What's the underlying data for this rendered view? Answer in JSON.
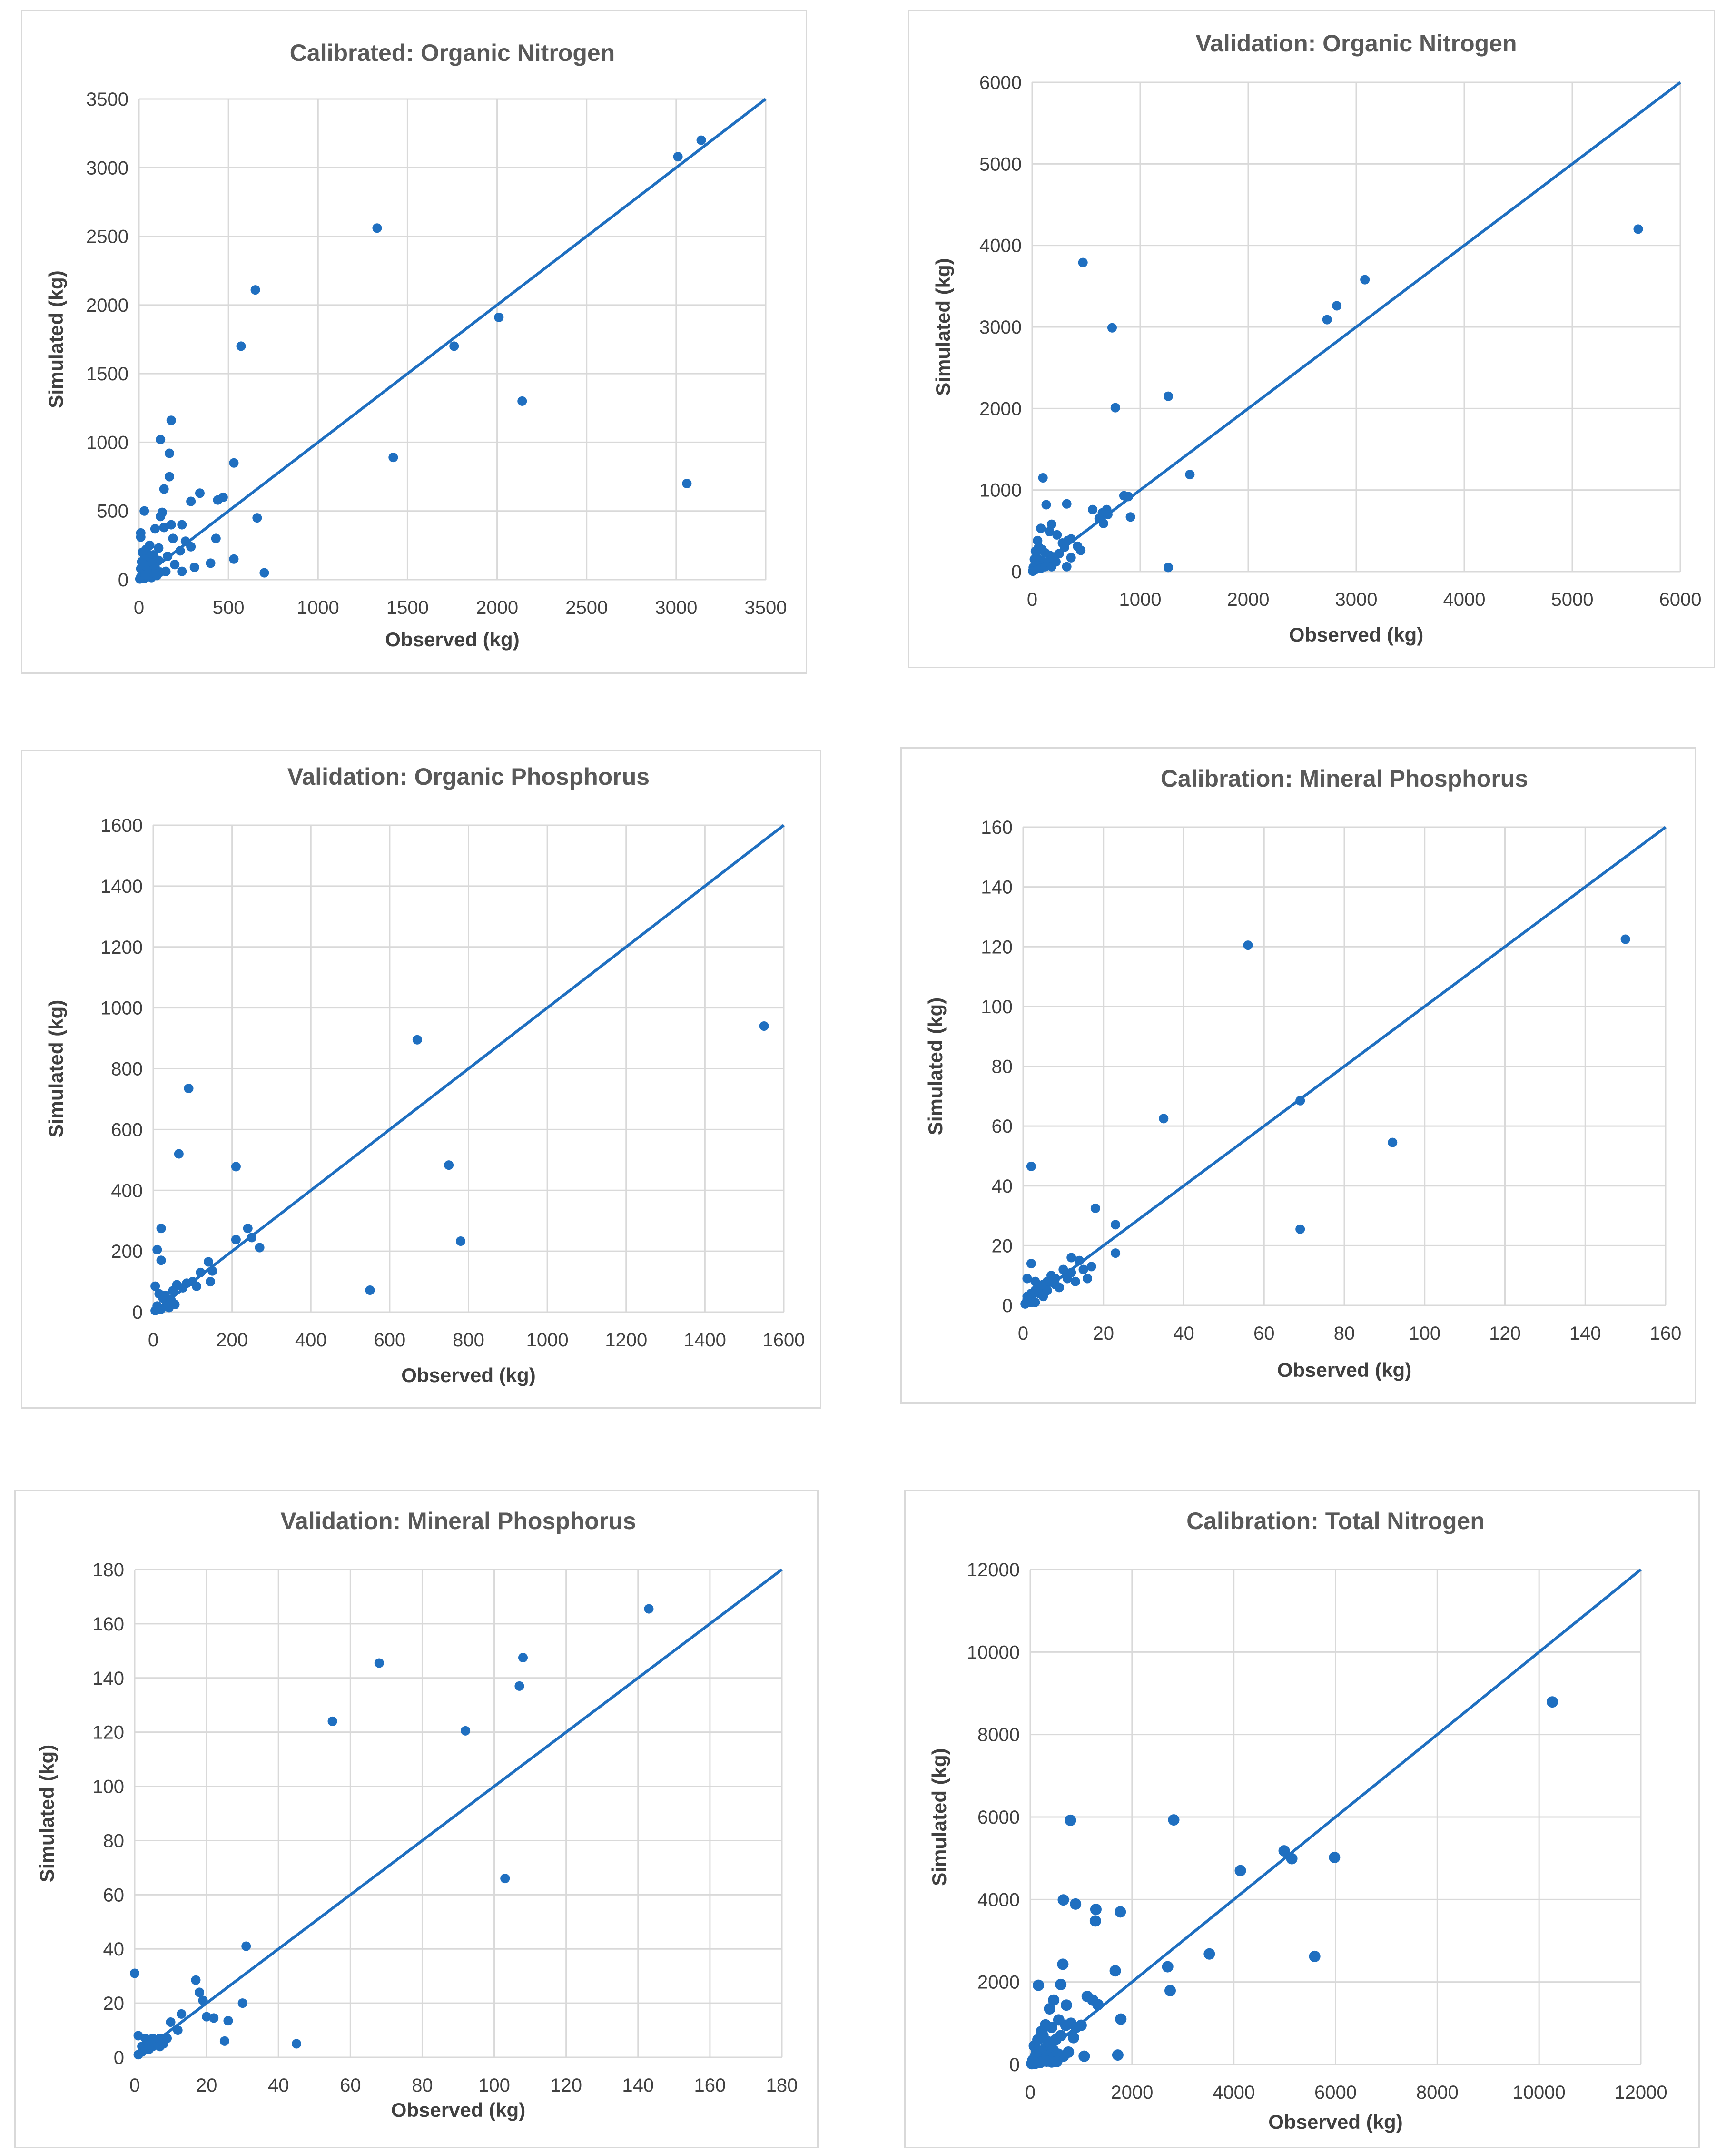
{
  "style": {
    "accent": "#1f6fc0",
    "grid": "#d9d9d9",
    "text": "#404040"
  },
  "chart_data": [
    {
      "id": "cal-orgn",
      "type": "scatter",
      "title": "Calibrated: Organic Nitrogen",
      "xlabel": "Observed (kg)",
      "ylabel": "Simulated (kg)",
      "xlim": [
        0,
        3500
      ],
      "ylim": [
        0,
        3500
      ],
      "xticks": [
        0,
        500,
        1000,
        1500,
        2000,
        2500,
        3000,
        3500
      ],
      "yticks": [
        0,
        500,
        1000,
        1500,
        2000,
        2500,
        3000,
        3500
      ],
      "line": [
        [
          0,
          0
        ],
        [
          3500,
          3500
        ]
      ],
      "points": [
        [
          3140,
          3200
        ],
        [
          3010,
          3080
        ],
        [
          1330,
          2560
        ],
        [
          650,
          2110
        ],
        [
          570,
          1700
        ],
        [
          1760,
          1700
        ],
        [
          2010,
          1910
        ],
        [
          2140,
          1300
        ],
        [
          3060,
          700
        ],
        [
          1420,
          890
        ],
        [
          180,
          1160
        ],
        [
          120,
          1020
        ],
        [
          170,
          920
        ],
        [
          170,
          750
        ],
        [
          140,
          660
        ],
        [
          530,
          850
        ],
        [
          340,
          630
        ],
        [
          470,
          600
        ],
        [
          440,
          580
        ],
        [
          290,
          570
        ],
        [
          130,
          490
        ],
        [
          120,
          460
        ],
        [
          30,
          500
        ],
        [
          660,
          450
        ],
        [
          140,
          380
        ],
        [
          180,
          400
        ],
        [
          240,
          400
        ],
        [
          90,
          370
        ],
        [
          10,
          340
        ],
        [
          10,
          310
        ],
        [
          430,
          300
        ],
        [
          190,
          300
        ],
        [
          260,
          280
        ],
        [
          290,
          240
        ],
        [
          230,
          210
        ],
        [
          530,
          150
        ],
        [
          400,
          120
        ],
        [
          310,
          90
        ],
        [
          240,
          60
        ],
        [
          700,
          50
        ],
        [
          60,
          250
        ],
        [
          40,
          220
        ],
        [
          20,
          200
        ],
        [
          80,
          180
        ],
        [
          50,
          160
        ],
        [
          30,
          150
        ],
        [
          110,
          140
        ],
        [
          70,
          120
        ],
        [
          20,
          110
        ],
        [
          40,
          100
        ],
        [
          90,
          90
        ],
        [
          10,
          80
        ],
        [
          60,
          70
        ],
        [
          30,
          60
        ],
        [
          120,
          55
        ],
        [
          80,
          45
        ],
        [
          20,
          40
        ],
        [
          50,
          30
        ],
        [
          10,
          20
        ],
        [
          30,
          10
        ],
        [
          70,
          15
        ],
        [
          100,
          30
        ],
        [
          150,
          60
        ],
        [
          5,
          5
        ],
        [
          15,
          130
        ],
        [
          25,
          90
        ],
        [
          45,
          65
        ],
        [
          35,
          35
        ],
        [
          200,
          110
        ],
        [
          160,
          170
        ],
        [
          110,
          230
        ]
      ]
    },
    {
      "id": "val-orgn",
      "type": "scatter",
      "title": "Validation: Organic Nitrogen",
      "xlabel": "Observed (kg)",
      "ylabel": "Simulated (kg)",
      "xlim": [
        0,
        6000
      ],
      "ylim": [
        0,
        6000
      ],
      "xticks": [
        0,
        1000,
        2000,
        3000,
        4000,
        5000,
        6000
      ],
      "yticks": [
        0,
        1000,
        2000,
        3000,
        4000,
        5000,
        6000
      ],
      "line": [
        [
          0,
          0
        ],
        [
          6000,
          6000
        ]
      ],
      "points": [
        [
          5610,
          4200
        ],
        [
          3080,
          3580
        ],
        [
          2820,
          3260
        ],
        [
          2730,
          3090
        ],
        [
          470,
          3790
        ],
        [
          740,
          2990
        ],
        [
          770,
          2010
        ],
        [
          1260,
          2150
        ],
        [
          1460,
          1190
        ],
        [
          1260,
          50
        ],
        [
          100,
          1150
        ],
        [
          850,
          930
        ],
        [
          890,
          920
        ],
        [
          910,
          670
        ],
        [
          690,
          760
        ],
        [
          650,
          720
        ],
        [
          700,
          700
        ],
        [
          560,
          760
        ],
        [
          620,
          650
        ],
        [
          660,
          590
        ],
        [
          320,
          830
        ],
        [
          130,
          820
        ],
        [
          180,
          580
        ],
        [
          80,
          530
        ],
        [
          160,
          490
        ],
        [
          230,
          450
        ],
        [
          360,
          400
        ],
        [
          330,
          380
        ],
        [
          280,
          350
        ],
        [
          300,
          300
        ],
        [
          420,
          310
        ],
        [
          450,
          260
        ],
        [
          360,
          170
        ],
        [
          320,
          60
        ],
        [
          50,
          380
        ],
        [
          60,
          300
        ],
        [
          30,
          250
        ],
        [
          90,
          270
        ],
        [
          120,
          230
        ],
        [
          160,
          200
        ],
        [
          200,
          180
        ],
        [
          250,
          220
        ],
        [
          40,
          180
        ],
        [
          20,
          150
        ],
        [
          70,
          140
        ],
        [
          100,
          120
        ],
        [
          150,
          100
        ],
        [
          30,
          90
        ],
        [
          60,
          70
        ],
        [
          10,
          50
        ],
        [
          40,
          30
        ],
        [
          80,
          40
        ],
        [
          120,
          60
        ],
        [
          20,
          20
        ],
        [
          5,
          5
        ],
        [
          180,
          60
        ],
        [
          220,
          120
        ]
      ]
    },
    {
      "id": "val-orgp",
      "type": "scatter",
      "title": "Validation: Organic Phosphorus",
      "xlabel": "Observed (kg)",
      "ylabel": "Simulated (kg)",
      "xlim": [
        0,
        1600
      ],
      "ylim": [
        0,
        1600
      ],
      "xticks": [
        0,
        200,
        400,
        600,
        800,
        1000,
        1200,
        1400,
        1600
      ],
      "yticks": [
        0,
        200,
        400,
        600,
        800,
        1000,
        1200,
        1400,
        1600
      ],
      "line": [
        [
          0,
          0
        ],
        [
          1600,
          1600
        ]
      ],
      "points": [
        [
          1550,
          940
        ],
        [
          670,
          895
        ],
        [
          90,
          735
        ],
        [
          65,
          520
        ],
        [
          210,
          478
        ],
        [
          750,
          483
        ],
        [
          780,
          233
        ],
        [
          550,
          72
        ],
        [
          20,
          275
        ],
        [
          240,
          275
        ],
        [
          210,
          238
        ],
        [
          250,
          245
        ],
        [
          270,
          212
        ],
        [
          10,
          205
        ],
        [
          20,
          170
        ],
        [
          140,
          165
        ],
        [
          150,
          135
        ],
        [
          120,
          130
        ],
        [
          100,
          100
        ],
        [
          85,
          95
        ],
        [
          60,
          90
        ],
        [
          75,
          80
        ],
        [
          50,
          70
        ],
        [
          145,
          100
        ],
        [
          110,
          85
        ],
        [
          5,
          85
        ],
        [
          15,
          60
        ],
        [
          25,
          45
        ],
        [
          35,
          30
        ],
        [
          10,
          20
        ],
        [
          40,
          15
        ],
        [
          20,
          10
        ],
        [
          5,
          5
        ],
        [
          30,
          55
        ],
        [
          45,
          40
        ],
        [
          55,
          25
        ]
      ]
    },
    {
      "id": "cal-minp",
      "type": "scatter",
      "title": "Calibration: Mineral Phosphorus",
      "xlabel": "Observed (kg)",
      "ylabel": "Simulated (kg)",
      "xlim": [
        0,
        160
      ],
      "ylim": [
        0,
        160
      ],
      "xticks": [
        0,
        20,
        40,
        60,
        80,
        100,
        120,
        140,
        160
      ],
      "yticks": [
        0,
        20,
        40,
        60,
        80,
        100,
        120,
        140,
        160
      ],
      "line": [
        [
          0,
          0
        ],
        [
          160,
          160
        ]
      ],
      "points": [
        [
          150,
          122.5
        ],
        [
          56,
          120.5
        ],
        [
          35,
          62.5
        ],
        [
          69,
          68.5
        ],
        [
          92,
          54.5
        ],
        [
          69,
          25.5
        ],
        [
          2,
          46.5
        ],
        [
          18,
          32.5
        ],
        [
          23,
          27
        ],
        [
          23,
          17.5
        ],
        [
          17,
          13
        ],
        [
          12,
          16
        ],
        [
          14,
          15
        ],
        [
          15,
          12
        ],
        [
          12,
          11
        ],
        [
          10,
          12
        ],
        [
          8,
          9
        ],
        [
          7,
          10
        ],
        [
          6,
          8
        ],
        [
          5,
          7
        ],
        [
          4,
          6
        ],
        [
          3,
          5
        ],
        [
          2,
          4
        ],
        [
          1,
          3
        ],
        [
          2,
          14
        ],
        [
          1,
          9
        ],
        [
          3,
          8
        ],
        [
          4,
          4
        ],
        [
          1,
          2
        ],
        [
          2,
          1
        ],
        [
          5,
          3
        ],
        [
          6,
          5
        ],
        [
          8,
          7
        ],
        [
          9,
          6
        ],
        [
          11,
          9
        ],
        [
          13,
          8
        ],
        [
          16,
          9
        ],
        [
          0.5,
          0.5
        ],
        [
          3,
          1
        ]
      ]
    },
    {
      "id": "val-minp",
      "type": "scatter",
      "title": "Validation: Mineral Phosphorus",
      "xlabel": "Observed (kg)",
      "ylabel": "Simulated (kg)",
      "xlim": [
        0,
        180
      ],
      "ylim": [
        0,
        180
      ],
      "xticks": [
        0,
        20,
        40,
        60,
        80,
        100,
        120,
        140,
        160,
        180
      ],
      "yticks": [
        0,
        20,
        40,
        60,
        80,
        100,
        120,
        140,
        160,
        180
      ],
      "line": [
        [
          0,
          0
        ],
        [
          180,
          180
        ]
      ],
      "points": [
        [
          143,
          165.5
        ],
        [
          108,
          147.5
        ],
        [
          107,
          137
        ],
        [
          68,
          145.5
        ],
        [
          55,
          124
        ],
        [
          92,
          120.5
        ],
        [
          103,
          66
        ],
        [
          45,
          5
        ],
        [
          31,
          41
        ],
        [
          30,
          20
        ],
        [
          26,
          13.5
        ],
        [
          25,
          6
        ],
        [
          22,
          14.5
        ],
        [
          20,
          15
        ],
        [
          19,
          21
        ],
        [
          18,
          24
        ],
        [
          17,
          28.5
        ],
        [
          13,
          16
        ],
        [
          12,
          10
        ],
        [
          10,
          13
        ],
        [
          8,
          5
        ],
        [
          7,
          7
        ],
        [
          6,
          5
        ],
        [
          5,
          7
        ],
        [
          4,
          3
        ],
        [
          3,
          7
        ],
        [
          2,
          4
        ],
        [
          1,
          8
        ],
        [
          0,
          31
        ],
        [
          2,
          2
        ],
        [
          1,
          1
        ],
        [
          4,
          5
        ],
        [
          5,
          4
        ],
        [
          3,
          3
        ],
        [
          7,
          4
        ],
        [
          9,
          7
        ]
      ]
    },
    {
      "id": "cal-totn",
      "type": "scatter",
      "title": "Calibration: Total Nitrogen",
      "xlabel": "Observed (kg)",
      "ylabel": "Simulated (kg)",
      "xlim": [
        0,
        12000
      ],
      "ylim": [
        0,
        12000
      ],
      "xticks": [
        0,
        2000,
        4000,
        6000,
        8000,
        10000,
        12000
      ],
      "yticks": [
        0,
        2000,
        4000,
        6000,
        8000,
        10000,
        12000
      ],
      "line": [
        [
          0,
          0
        ],
        [
          12000,
          12000
        ]
      ],
      "points": [
        [
          10260,
          8790
        ],
        [
          790,
          5920
        ],
        [
          2820,
          5930
        ],
        [
          4990,
          5180
        ],
        [
          5140,
          4990
        ],
        [
          5980,
          5020
        ],
        [
          4130,
          4700
        ],
        [
          650,
          3990
        ],
        [
          890,
          3890
        ],
        [
          1290,
          3760
        ],
        [
          1280,
          3480
        ],
        [
          1770,
          3700
        ],
        [
          3520,
          2680
        ],
        [
          5590,
          2620
        ],
        [
          2700,
          2370
        ],
        [
          2750,
          1790
        ],
        [
          1670,
          2270
        ],
        [
          1780,
          1100
        ],
        [
          640,
          2430
        ],
        [
          1120,
          1650
        ],
        [
          1230,
          1560
        ],
        [
          1330,
          1450
        ],
        [
          1060,
          200
        ],
        [
          1720,
          230
        ],
        [
          160,
          1920
        ],
        [
          460,
          1560
        ],
        [
          600,
          1940
        ],
        [
          710,
          1440
        ],
        [
          560,
          1080
        ],
        [
          380,
          1350
        ],
        [
          300,
          960
        ],
        [
          220,
          800
        ],
        [
          420,
          900
        ],
        [
          800,
          1000
        ],
        [
          900,
          900
        ],
        [
          1000,
          950
        ],
        [
          700,
          950
        ],
        [
          850,
          650
        ],
        [
          600,
          700
        ],
        [
          500,
          600
        ],
        [
          400,
          500
        ],
        [
          300,
          400
        ],
        [
          200,
          300
        ],
        [
          100,
          200
        ],
        [
          150,
          600
        ],
        [
          250,
          700
        ],
        [
          350,
          550
        ],
        [
          450,
          350
        ],
        [
          550,
          250
        ],
        [
          650,
          200
        ],
        [
          750,
          300
        ],
        [
          50,
          100
        ],
        [
          80,
          450
        ],
        [
          120,
          350
        ],
        [
          180,
          150
        ],
        [
          280,
          120
        ],
        [
          380,
          220
        ],
        [
          480,
          180
        ],
        [
          200,
          50
        ],
        [
          100,
          30
        ],
        [
          30,
          20
        ],
        [
          60,
          60
        ],
        [
          320,
          80
        ],
        [
          420,
          60
        ],
        [
          520,
          70
        ]
      ]
    }
  ]
}
